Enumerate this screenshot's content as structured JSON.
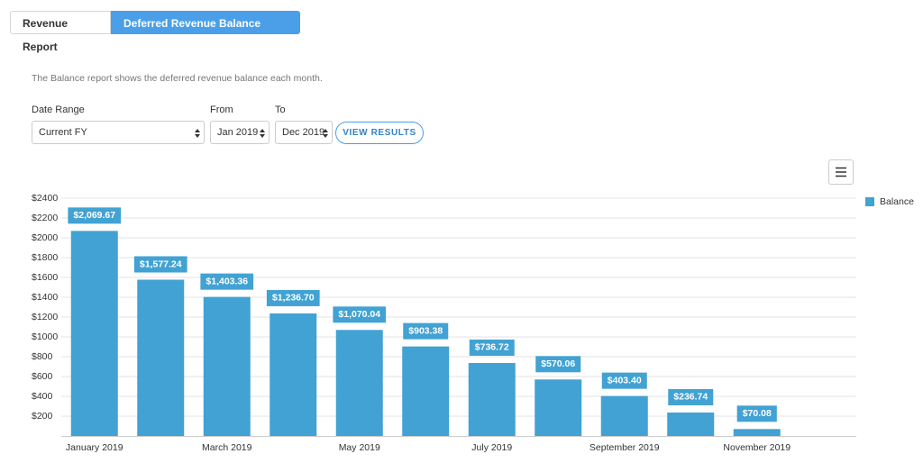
{
  "tabs": [
    "Revenue Report",
    "Deferred Revenue Balance Report"
  ],
  "active_tab": 1,
  "description": "The Balance report shows the deferred revenue balance each month.",
  "form": {
    "date_range": {
      "label": "Date Range",
      "value": "Current FY"
    },
    "from": {
      "label": "From",
      "value": "Jan 2019"
    },
    "to": {
      "label": "To",
      "value": "Dec 2019"
    },
    "button": "VIEW RESULTS"
  },
  "chart_data": {
    "type": "bar",
    "categories": [
      "January 2019",
      null,
      "March 2019",
      null,
      "May 2019",
      null,
      "July 2019",
      null,
      "September 2019",
      null,
      "November 2019",
      null
    ],
    "series": [
      {
        "name": "Balance",
        "color": "#41a2d3",
        "values": [
          2069.67,
          1577.24,
          1403.36,
          1236.7,
          1070.04,
          903.38,
          736.72,
          570.06,
          403.4,
          236.74,
          70.08,
          null
        ],
        "value_labels": [
          "$2,069.67",
          "$1,577.24",
          "$1,403.36",
          "$1,236.70",
          "$1,070.04",
          "$903.38",
          "$736.72",
          "$570.06",
          "$403.40",
          "$236.74",
          "$70.08",
          null
        ]
      }
    ],
    "ylim": [
      0,
      2400
    ],
    "yticks": [
      {
        "value": 200,
        "label": "$200"
      },
      {
        "value": 400,
        "label": "$400"
      },
      {
        "value": 600,
        "label": "$600"
      },
      {
        "value": 800,
        "label": "$800"
      },
      {
        "value": 1000,
        "label": "$1000"
      },
      {
        "value": 1200,
        "label": "$1200"
      },
      {
        "value": 1400,
        "label": "$1400"
      },
      {
        "value": 1600,
        "label": "$1600"
      },
      {
        "value": 1800,
        "label": "$1800"
      },
      {
        "value": 2000,
        "label": "$2000"
      },
      {
        "value": 2200,
        "label": "$2200"
      },
      {
        "value": 2400,
        "label": "$2400"
      }
    ],
    "grid": true,
    "legend": "top-right"
  }
}
